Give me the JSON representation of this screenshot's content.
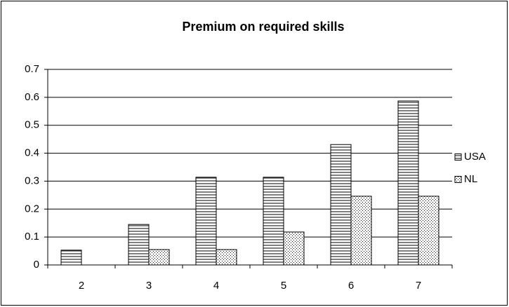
{
  "chart_data": {
    "type": "bar",
    "title": "Premium on required skills",
    "categories": [
      "2",
      "3",
      "4",
      "5",
      "6",
      "7"
    ],
    "series": [
      {
        "name": "USA",
        "color": "#000000",
        "pattern": "horizontal",
        "values": [
          0.053,
          0.145,
          0.314,
          0.314,
          0.431,
          0.587
        ]
      },
      {
        "name": "NL",
        "color": "#000000",
        "pattern": "dotted",
        "values": [
          null,
          0.055,
          0.055,
          0.118,
          0.246,
          0.246
        ]
      }
    ],
    "ylim": [
      0,
      0.7
    ],
    "yticks": [
      0,
      0.1,
      0.2,
      0.3,
      0.4,
      0.5,
      0.6,
      0.7
    ],
    "grid": true,
    "legend": "right"
  }
}
